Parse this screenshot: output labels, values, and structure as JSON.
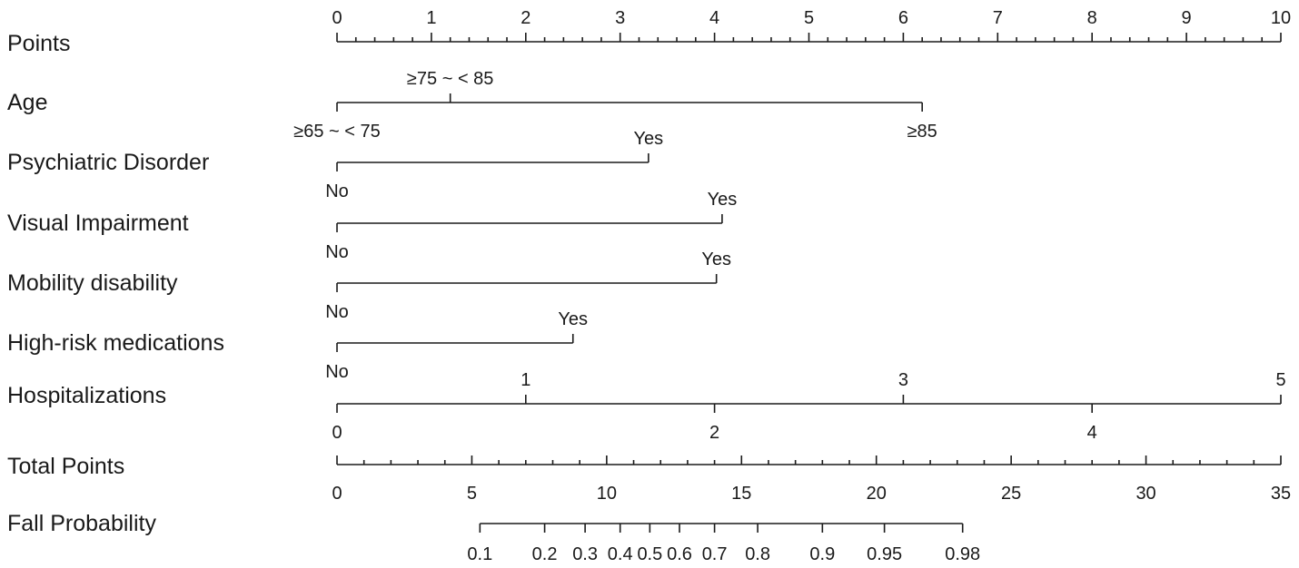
{
  "chart_data": {
    "type": "nomogram",
    "title": "",
    "points_scale": {
      "label": "Points",
      "range": [
        0,
        10
      ],
      "major_ticks": [
        "0",
        "1",
        "2",
        "3",
        "4",
        "5",
        "6",
        "7",
        "8",
        "9",
        "10"
      ],
      "minor_step": 0.2
    },
    "variables": [
      {
        "label": "Age",
        "levels": [
          {
            "name": "≥65 ~ < 75",
            "points": 0,
            "label_side": "below"
          },
          {
            "name": "≥75 ~ < 85",
            "points": 1.2,
            "label_side": "above"
          },
          {
            "name": "≥85",
            "points": 6.2,
            "label_side": "below"
          }
        ]
      },
      {
        "label": "Psychiatric Disorder",
        "levels": [
          {
            "name": "No",
            "points": 0,
            "label_side": "below"
          },
          {
            "name": "Yes",
            "points": 3.3,
            "label_side": "above"
          }
        ]
      },
      {
        "label": "Visual Impairment",
        "levels": [
          {
            "name": "No",
            "points": 0,
            "label_side": "below"
          },
          {
            "name": "Yes",
            "points": 4.08,
            "label_side": "above"
          }
        ]
      },
      {
        "label": "Mobility disability",
        "levels": [
          {
            "name": "No",
            "points": 0,
            "label_side": "below"
          },
          {
            "name": "Yes",
            "points": 4.02,
            "label_side": "above"
          }
        ]
      },
      {
        "label": "High-risk medications",
        "levels": [
          {
            "name": "No",
            "points": 0,
            "label_side": "below"
          },
          {
            "name": "Yes",
            "points": 2.5,
            "label_side": "above"
          }
        ]
      },
      {
        "label": "Hospitalizations",
        "levels": [
          {
            "name": "0",
            "points": 0,
            "label_side": "below"
          },
          {
            "name": "1",
            "points": 2,
            "label_side": "above"
          },
          {
            "name": "2",
            "points": 4,
            "label_side": "below"
          },
          {
            "name": "3",
            "points": 6,
            "label_side": "above"
          },
          {
            "name": "4",
            "points": 8,
            "label_side": "below"
          },
          {
            "name": "5",
            "points": 10,
            "label_side": "above"
          }
        ]
      }
    ],
    "total_points_scale": {
      "label": "Total Points",
      "range": [
        0,
        35
      ],
      "major_ticks": [
        "0",
        "5",
        "10",
        "15",
        "20",
        "25",
        "30",
        "35"
      ],
      "minor_step": 1
    },
    "probability_scale": {
      "label": "Fall Probability",
      "ticks": [
        {
          "label": "0.1",
          "total_points": 5.3
        },
        {
          "label": "0.2",
          "total_points": 7.7
        },
        {
          "label": "0.3",
          "total_points": 9.2
        },
        {
          "label": "0.4",
          "total_points": 10.5
        },
        {
          "label": "0.5",
          "total_points": 11.6
        },
        {
          "label": "0.6",
          "total_points": 12.7
        },
        {
          "label": "0.7",
          "total_points": 14.0
        },
        {
          "label": "0.8",
          "total_points": 15.6
        },
        {
          "label": "0.9",
          "total_points": 18.0
        },
        {
          "label": "0.95",
          "total_points": 20.3
        },
        {
          "label": "0.98",
          "total_points": 23.2
        }
      ]
    }
  }
}
